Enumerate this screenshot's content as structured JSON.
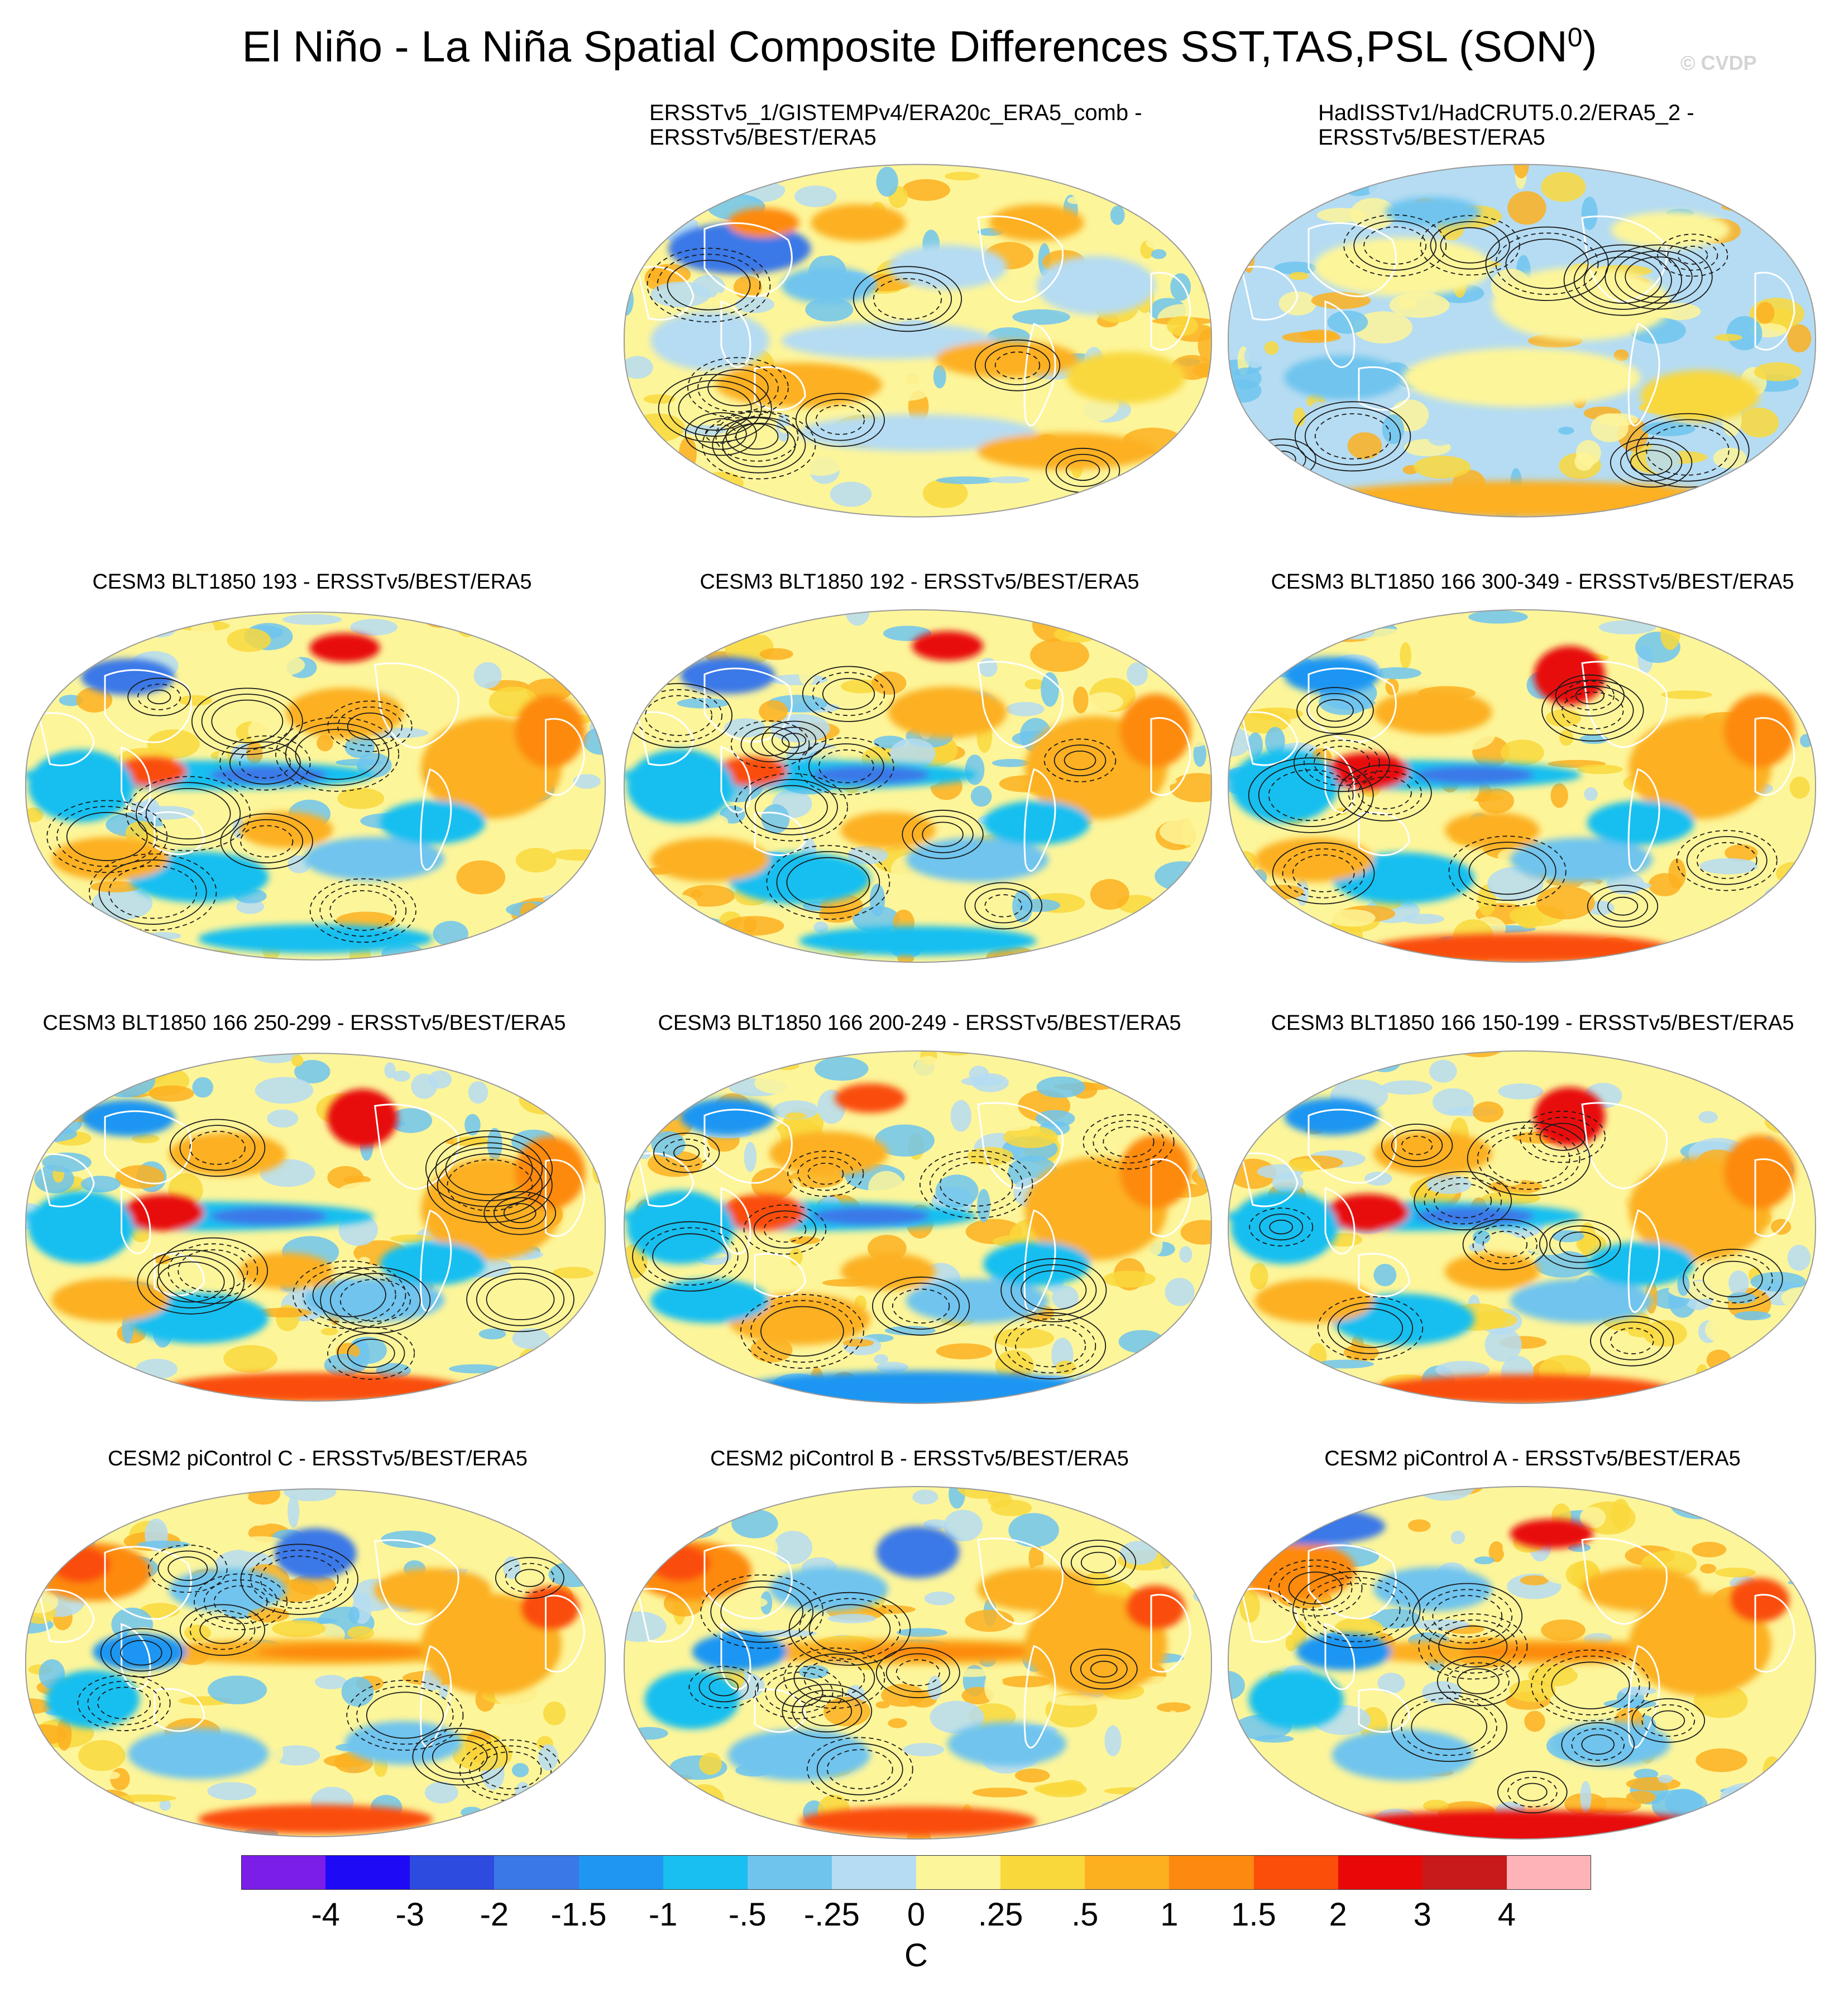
{
  "title": "El Niño - La Niña Spatial Composite Differences SST,TAS,PSL (SON",
  "title_superscript": "0",
  "title_suffix": ")",
  "watermark": "© CVDP",
  "colors": {
    "neg4": "#7a1ee8",
    "neg3": "#1e0af5",
    "neg2": "#2e4be0",
    "neg15": "#3a78e8",
    "neg1": "#1f96f2",
    "neg05": "#18bff0",
    "neg025": "#6fc4ee",
    "neg0": "#b5dcf2",
    "pos0": "#fdf59a",
    "pos025": "#f9d83c",
    "pos05": "#fcb020",
    "pos1": "#fd8a10",
    "pos15": "#fa4e0a",
    "pos2": "#e80808",
    "pos3": "#c81a1a",
    "pos4": "#fdb3b8",
    "land_contour": "#ffffff",
    "psl_contour": "#1a1a1a"
  },
  "panels": [
    {
      "title_line1": "ERSSTv5_1/GISTEMPv4/ERA20c_ERA5_comb -",
      "title_line2": "ERSSTv5/BEST/ERA5",
      "pattern": "obs1"
    },
    {
      "title_line1": "HadISSTv1/HadCRUT5.0.2/ERA5_2 -",
      "title_line2": "ERSSTv5/BEST/ERA5",
      "pattern": "obs2"
    },
    {
      "title": "CESM3 BLT1850 193 - ERSSTv5/BEST/ERA5",
      "pattern": "model_cold"
    },
    {
      "title": "CESM3 BLT1850 192 - ERSSTv5/BEST/ERA5",
      "pattern": "model_cold"
    },
    {
      "title": "CESM3 BLT1850 166 300-349 - ERSSTv5/BEST/ERA5",
      "pattern": "model_cold_red"
    },
    {
      "title": "CESM3 BLT1850 166 250-299 - ERSSTv5/BEST/ERA5",
      "pattern": "model_cold_red"
    },
    {
      "title": "CESM3 BLT1850 166 200-249 - ERSSTv5/BEST/ERA5",
      "pattern": "model_cold_blue"
    },
    {
      "title": "CESM3 BLT1850 166 150-199 - ERSSTv5/BEST/ERA5",
      "pattern": "model_cold_red"
    },
    {
      "title": "CESM2 piControl C - ERSSTv5/BEST/ERA5",
      "pattern": "model_warm"
    },
    {
      "title": "CESM2 piControl B - ERSSTv5/BEST/ERA5",
      "pattern": "model_warm"
    },
    {
      "title": "CESM2 piControl A - ERSSTv5/BEST/ERA5",
      "pattern": "model_warm_red"
    }
  ],
  "colorbar": {
    "colors": [
      "#7a1ee8",
      "#1e0af5",
      "#2e4be0",
      "#3a78e8",
      "#1f96f2",
      "#18bff0",
      "#6fc4ee",
      "#b5dcf2",
      "#fdf59a",
      "#f9d83c",
      "#fcb020",
      "#fd8a10",
      "#fa4e0a",
      "#e80808",
      "#c81a1a",
      "#fdb3b8"
    ],
    "labels": [
      "-4",
      "-3",
      "-2",
      "-1.5",
      "-1",
      "-.5",
      "-.25",
      "0",
      ".25",
      ".5",
      "1",
      "1.5",
      "2",
      "3",
      "4"
    ],
    "units": "C"
  }
}
